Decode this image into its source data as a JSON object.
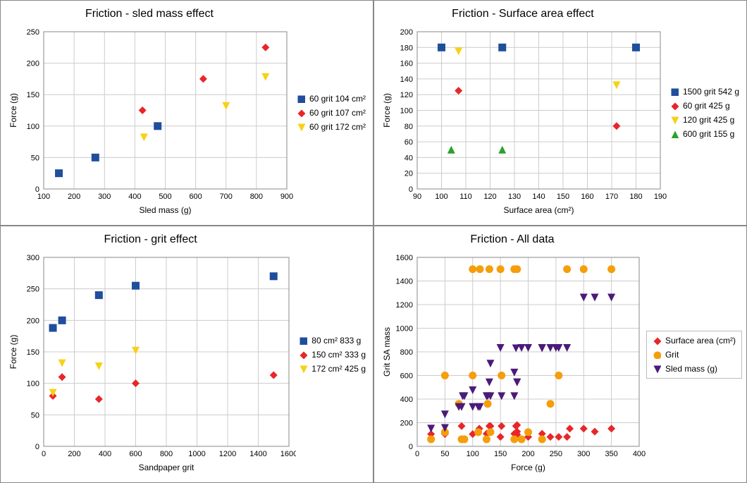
{
  "panels": {
    "topleft": {
      "title": "Friction - sled mass effect",
      "xlabel": "Sled mass (g)",
      "ylabel": "Force (g)",
      "xlim": [
        100,
        900
      ],
      "ylim": [
        0,
        250
      ],
      "xtick_step": 100,
      "ytick_step": 50,
      "title_fontsize": 16,
      "label_fontsize": 12,
      "background_color": "#ffffff",
      "grid_color": "#cccccc",
      "series": [
        {
          "name": "60 grit 104 cm²",
          "marker": "square",
          "color": "#1f4e9c",
          "points": [
            [
              150,
              25
            ],
            [
              270,
              50
            ],
            [
              475,
              100
            ]
          ]
        },
        {
          "name": "60 grit 107 cm²",
          "marker": "diamond",
          "color": "#e8262a",
          "points": [
            [
              425,
              125
            ],
            [
              625,
              175
            ],
            [
              830,
              225
            ]
          ]
        },
        {
          "name": "60 grit 172 cm²",
          "marker": "triangle-down",
          "color": "#f7d117",
          "points": [
            [
              430,
              82
            ],
            [
              700,
              132
            ],
            [
              830,
              178
            ]
          ]
        }
      ]
    },
    "topright": {
      "title": "Friction - Surface area effect",
      "xlabel": "Surface area (cm²)",
      "ylabel": "Force (g)",
      "xlim": [
        90,
        190
      ],
      "ylim": [
        0,
        200
      ],
      "xtick_step": 10,
      "ytick_step": 20,
      "title_fontsize": 16,
      "label_fontsize": 12,
      "background_color": "#ffffff",
      "grid_color": "#cccccc",
      "series": [
        {
          "name": "1500 grit 542 g",
          "marker": "square",
          "color": "#1f4e9c",
          "points": [
            [
              100,
              180
            ],
            [
              125,
              180
            ],
            [
              180,
              180
            ]
          ]
        },
        {
          "name": "60 grit 425 g",
          "marker": "diamond",
          "color": "#e8262a",
          "points": [
            [
              107,
              125
            ],
            [
              172,
              80
            ]
          ]
        },
        {
          "name": "120 grit 425 g",
          "marker": "triangle-down",
          "color": "#f7d117",
          "points": [
            [
              107,
              175
            ],
            [
              172,
              132
            ]
          ]
        },
        {
          "name": "600 grit 155 g",
          "marker": "triangle-up",
          "color": "#2ca02c",
          "points": [
            [
              104,
              50
            ],
            [
              125,
              50
            ]
          ]
        }
      ]
    },
    "bottomleft": {
      "title": "Friction - grit effect",
      "xlabel": "Sandpaper grit",
      "ylabel": "Force (g)",
      "xlim": [
        0,
        1600
      ],
      "ylim": [
        0,
        300
      ],
      "xtick_step": 200,
      "ytick_step": 50,
      "title_fontsize": 16,
      "label_fontsize": 12,
      "background_color": "#ffffff",
      "grid_color": "#cccccc",
      "series": [
        {
          "name": "80 cm² 833 g",
          "marker": "square",
          "color": "#1f4e9c",
          "points": [
            [
              60,
              188
            ],
            [
              120,
              200
            ],
            [
              360,
              240
            ],
            [
              600,
              255
            ],
            [
              1500,
              270
            ]
          ]
        },
        {
          "name": "150 cm² 333 g",
          "marker": "diamond",
          "color": "#e8262a",
          "points": [
            [
              60,
              80
            ],
            [
              120,
              110
            ],
            [
              360,
              75
            ],
            [
              600,
              100
            ],
            [
              1500,
              113
            ]
          ]
        },
        {
          "name": "172 cm² 425 g",
          "marker": "triangle-down",
          "color": "#f7d117",
          "points": [
            [
              60,
              85
            ],
            [
              120,
              132
            ],
            [
              360,
              127
            ],
            [
              600,
              152
            ]
          ]
        }
      ]
    },
    "bottomright": {
      "title": "Friction - All data",
      "xlabel": "Force (g)",
      "ylabel": "Grit SA mass",
      "xlim": [
        0,
        400
      ],
      "ylim": [
        0,
        1600
      ],
      "xtick_step": 50,
      "ytick_step": 200,
      "title_fontsize": 16,
      "label_fontsize": 12,
      "background_color": "#ffffff",
      "grid_color": "#cccccc",
      "legend_boxed": true,
      "series": [
        {
          "name": "Surface area (cm²)",
          "marker": "diamond",
          "color": "#e8262a",
          "points": [
            [
              25,
              104
            ],
            [
              50,
              104
            ],
            [
              80,
              172
            ],
            [
              100,
              104
            ],
            [
              112,
              150
            ],
            [
              125,
              107
            ],
            [
              130,
              172
            ],
            [
              132,
              172
            ],
            [
              150,
              80
            ],
            [
              152,
              172
            ],
            [
              175,
              107
            ],
            [
              178,
              172
            ],
            [
              180,
              100
            ],
            [
              180,
              125
            ],
            [
              180,
              180
            ],
            [
              200,
              80
            ],
            [
              225,
              107
            ],
            [
              240,
              80
            ],
            [
              255,
              80
            ],
            [
              270,
              80
            ],
            [
              275,
              150
            ],
            [
              300,
              150
            ],
            [
              320,
              125
            ],
            [
              350,
              150
            ]
          ]
        },
        {
          "name": "Grit",
          "marker": "circle",
          "color": "#f59e0b",
          "points": [
            [
              25,
              60
            ],
            [
              50,
              600
            ],
            [
              50,
              120
            ],
            [
              75,
              360
            ],
            [
              80,
              60
            ],
            [
              85,
              60
            ],
            [
              100,
              600
            ],
            [
              100,
              1500
            ],
            [
              110,
              120
            ],
            [
              113,
              1500
            ],
            [
              125,
              60
            ],
            [
              127,
              360
            ],
            [
              130,
              1500
            ],
            [
              132,
              120
            ],
            [
              150,
              1500
            ],
            [
              152,
              600
            ],
            [
              175,
              60
            ],
            [
              175,
              1500
            ],
            [
              180,
              1500
            ],
            [
              188,
              60
            ],
            [
              200,
              120
            ],
            [
              225,
              60
            ],
            [
              240,
              360
            ],
            [
              255,
              600
            ],
            [
              270,
              1500
            ],
            [
              300,
              1500
            ],
            [
              350,
              1500
            ]
          ]
        },
        {
          "name": "Sled mass (g)",
          "marker": "triangle-down",
          "color": "#4b1a7a",
          "points": [
            [
              25,
              150
            ],
            [
              50,
              155
            ],
            [
              50,
              270
            ],
            [
              75,
              333
            ],
            [
              80,
              333
            ],
            [
              82,
              425
            ],
            [
              85,
              425
            ],
            [
              100,
              333
            ],
            [
              100,
              475
            ],
            [
              110,
              333
            ],
            [
              113,
              333
            ],
            [
              125,
              425
            ],
            [
              127,
              425
            ],
            [
              130,
              542
            ],
            [
              132,
              425
            ],
            [
              132,
              700
            ],
            [
              150,
              833
            ],
            [
              152,
              425
            ],
            [
              175,
              425
            ],
            [
              175,
              625
            ],
            [
              178,
              830
            ],
            [
              180,
              542
            ],
            [
              180,
              542
            ],
            [
              188,
              833
            ],
            [
              200,
              833
            ],
            [
              225,
              830
            ],
            [
              225,
              833
            ],
            [
              240,
              833
            ],
            [
              250,
              833
            ],
            [
              255,
              833
            ],
            [
              270,
              833
            ],
            [
              300,
              1260
            ],
            [
              320,
              1260
            ],
            [
              350,
              1260
            ]
          ]
        }
      ]
    }
  }
}
